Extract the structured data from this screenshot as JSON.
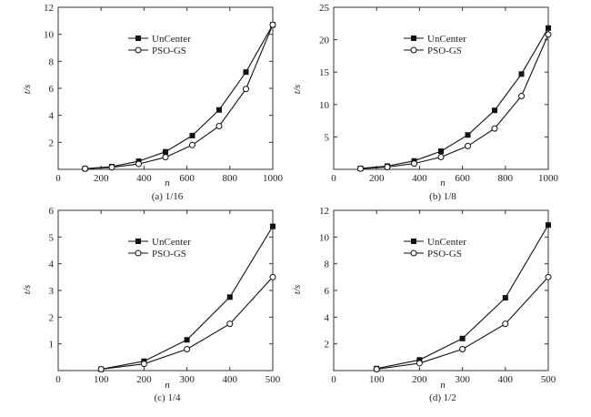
{
  "chart_data": [
    {
      "type": "line",
      "caption": "(a) 1/16",
      "xlabel": "n",
      "ylabel": "t/s",
      "xlim": [
        0,
        1000
      ],
      "ylim": [
        0,
        12
      ],
      "xticks": [
        0,
        200,
        400,
        600,
        800,
        1000
      ],
      "xtick_labels": [
        "0",
        "200",
        "400",
        "600",
        "800",
        "1000"
      ],
      "yticks": [
        2,
        4,
        6,
        8,
        10,
        12
      ],
      "ytick_labels": [
        "2",
        "4",
        "6",
        "8",
        "10",
        "12"
      ],
      "legend_position": "upper-left",
      "grid": false,
      "series": [
        {
          "name": "UnCenter",
          "marker": "filled-square",
          "x": [
            125,
            250,
            375,
            500,
            625,
            750,
            875,
            1000
          ],
          "y": [
            0.05,
            0.2,
            0.6,
            1.3,
            2.5,
            4.4,
            7.2,
            10.7
          ]
        },
        {
          "name": "PSO-GS",
          "marker": "open-circle",
          "x": [
            125,
            250,
            375,
            500,
            625,
            750,
            875,
            1000
          ],
          "y": [
            0.05,
            0.15,
            0.4,
            0.9,
            1.8,
            3.2,
            5.95,
            10.7
          ]
        }
      ]
    },
    {
      "type": "line",
      "caption": "(b) 1/8",
      "xlabel": "n",
      "ylabel": "t/s",
      "xlim": [
        0,
        1000
      ],
      "ylim": [
        0,
        25
      ],
      "xticks": [
        0,
        200,
        400,
        600,
        800,
        1000
      ],
      "xtick_labels": [
        "0",
        "200",
        "400",
        "600",
        "800",
        "1000"
      ],
      "yticks": [
        5,
        10,
        15,
        20,
        25
      ],
      "ytick_labels": [
        "5",
        "10",
        "15",
        "20",
        "25"
      ],
      "legend_position": "upper-left",
      "grid": false,
      "series": [
        {
          "name": "UnCenter",
          "marker": "filled-square",
          "x": [
            125,
            250,
            375,
            500,
            625,
            750,
            875,
            1000
          ],
          "y": [
            0.15,
            0.5,
            1.3,
            2.8,
            5.3,
            9.1,
            14.7,
            21.8
          ]
        },
        {
          "name": "PSO-GS",
          "marker": "open-circle",
          "x": [
            125,
            250,
            375,
            500,
            625,
            750,
            875,
            1000
          ],
          "y": [
            0.1,
            0.35,
            0.9,
            1.9,
            3.6,
            6.3,
            11.3,
            20.8
          ]
        }
      ]
    },
    {
      "type": "line",
      "caption": "(c) 1/4",
      "xlabel": "n",
      "ylabel": "t/s",
      "xlim": [
        0,
        500
      ],
      "ylim": [
        0,
        6
      ],
      "xticks": [
        0,
        100,
        200,
        300,
        400,
        500
      ],
      "xtick_labels": [
        "0",
        "100",
        "200",
        "300",
        "400",
        "500"
      ],
      "yticks": [
        1,
        2,
        3,
        4,
        5,
        6
      ],
      "ytick_labels": [
        "1",
        "2",
        "3",
        "4",
        "5",
        "6"
      ],
      "legend_position": "upper-left",
      "grid": false,
      "series": [
        {
          "name": "UnCenter",
          "marker": "filled-square",
          "x": [
            100,
            200,
            300,
            400,
            500
          ],
          "y": [
            0.05,
            0.35,
            1.15,
            2.75,
            5.4
          ]
        },
        {
          "name": "PSO-GS",
          "marker": "open-circle",
          "x": [
            100,
            200,
            300,
            400,
            500
          ],
          "y": [
            0.05,
            0.25,
            0.8,
            1.75,
            3.5
          ]
        }
      ]
    },
    {
      "type": "line",
      "caption": "(d) 1/2",
      "xlabel": "n",
      "ylabel": "t/s",
      "xlim": [
        0,
        500
      ],
      "ylim": [
        0,
        12
      ],
      "xticks": [
        0,
        100,
        200,
        300,
        400,
        500
      ],
      "xtick_labels": [
        "0",
        "100",
        "200",
        "300",
        "400",
        "500"
      ],
      "yticks": [
        2,
        4,
        6,
        8,
        10,
        12
      ],
      "ytick_labels": [
        "2",
        "4",
        "6",
        "8",
        "10",
        "12"
      ],
      "legend_position": "upper-left",
      "grid": false,
      "series": [
        {
          "name": "UnCenter",
          "marker": "filled-square",
          "x": [
            100,
            200,
            300,
            400,
            500
          ],
          "y": [
            0.15,
            0.8,
            2.4,
            5.45,
            10.9
          ]
        },
        {
          "name": "PSO-GS",
          "marker": "open-circle",
          "x": [
            100,
            200,
            300,
            400,
            500
          ],
          "y": [
            0.1,
            0.55,
            1.6,
            3.5,
            7.0
          ]
        }
      ]
    }
  ]
}
